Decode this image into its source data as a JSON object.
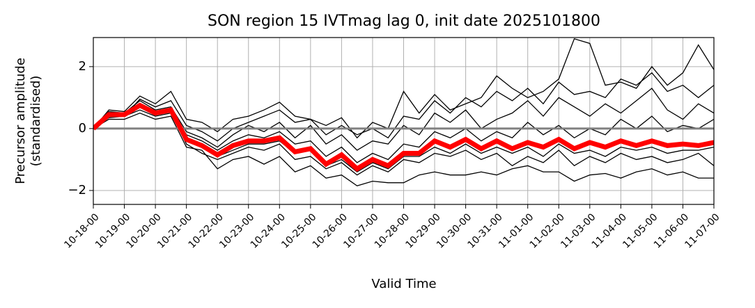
{
  "chart_data": {
    "type": "line",
    "title": "SON region 15 IVTmag lag 0, init date 2025101800",
    "xlabel": "Valid Time",
    "ylabel": [
      "Precursor amplitude",
      "(standardised)"
    ],
    "categories": [
      "10-18-00",
      null,
      "10-19-00",
      null,
      "10-20-00",
      null,
      "10-21-00",
      null,
      "10-22-00",
      null,
      "10-23-00",
      null,
      "10-24-00",
      null,
      "10-25-00",
      null,
      "10-26-00",
      null,
      "10-27-00",
      null,
      "10-28-00",
      null,
      "10-29-00",
      null,
      "10-30-00",
      null,
      "10-31-00",
      null,
      "11-01-00",
      null,
      "11-02-00",
      null,
      "11-03-00",
      null,
      "11-04-00",
      null,
      "11-05-00",
      null,
      "11-06-00",
      null,
      "11-07-00"
    ],
    "ylim": [
      -2.45,
      2.94
    ],
    "yticks": [
      {
        "value": -2,
        "label": "−2"
      },
      0,
      2
    ],
    "grid": true,
    "reference_line": {
      "value": 0,
      "color": "#808080"
    },
    "series": [
      {
        "color": "#000000",
        "width": 1.3,
        "values": [
          0,
          0.6,
          0.55,
          1.05,
          0.8,
          1.2,
          0.3,
          0.2,
          -0.1,
          0.3,
          0.4,
          0.6,
          0.85,
          0.4,
          0.3,
          0.1,
          0.35,
          -0.3,
          0.2,
          0.0,
          1.2,
          0.5,
          1.1,
          0.6,
          0.8,
          1.0,
          1.7,
          1.3,
          1.0,
          1.2,
          1.6,
          2.9,
          2.75,
          1.4,
          1.5,
          1.3,
          2.0,
          1.4,
          1.8,
          2.7,
          1.9
        ]
      },
      {
        "color": "#000000",
        "width": 1.3,
        "values": [
          0,
          0.3,
          0.3,
          0.5,
          0.3,
          0.4,
          -0.6,
          -0.7,
          -1.3,
          -1.0,
          -0.9,
          -1.15,
          -0.9,
          -1.4,
          -1.2,
          -1.6,
          -1.5,
          -1.85,
          -1.7,
          -1.75,
          -1.75,
          -1.5,
          -1.4,
          -1.5,
          -1.5,
          -1.4,
          -1.5,
          -1.3,
          -1.2,
          -1.4,
          -1.4,
          -1.7,
          -1.5,
          -1.45,
          -1.6,
          -1.4,
          -1.3,
          -1.5,
          -1.4,
          -1.6,
          -1.6
        ]
      },
      {
        "color": "#000000",
        "width": 1.3,
        "values": [
          0,
          0.5,
          0.5,
          0.9,
          0.6,
          0.7,
          -0.1,
          -0.3,
          -0.6,
          -0.2,
          0.1,
          -0.1,
          0.2,
          -0.3,
          0.1,
          -0.5,
          -0.2,
          -0.7,
          -0.4,
          -0.5,
          0.1,
          -0.2,
          0.5,
          0.2,
          0.6,
          0.0,
          0.3,
          0.5,
          0.9,
          0.4,
          1.0,
          0.7,
          0.4,
          0.8,
          0.5,
          0.9,
          1.3,
          0.6,
          0.3,
          0.8,
          0.5
        ]
      },
      {
        "color": "#000000",
        "width": 1.3,
        "values": [
          0,
          0.4,
          0.4,
          0.6,
          0.4,
          0.5,
          -0.5,
          -0.8,
          -1.0,
          -0.8,
          -0.6,
          -0.7,
          -0.5,
          -1.0,
          -0.9,
          -1.3,
          -1.1,
          -1.5,
          -1.2,
          -1.4,
          -1.0,
          -1.1,
          -0.8,
          -0.9,
          -0.7,
          -1.0,
          -0.8,
          -1.2,
          -0.9,
          -1.1,
          -0.7,
          -1.2,
          -0.9,
          -1.1,
          -0.8,
          -1.0,
          -0.9,
          -1.1,
          -1.0,
          -0.8,
          -1.2
        ]
      },
      {
        "color": "#000000",
        "width": 1.3,
        "values": [
          0,
          0.5,
          0.45,
          0.8,
          0.5,
          0.65,
          -0.2,
          -0.4,
          -0.7,
          -0.4,
          -0.2,
          -0.3,
          -0.1,
          -0.5,
          -0.4,
          -0.9,
          -0.6,
          -1.1,
          -0.8,
          -1.0,
          -0.5,
          -0.6,
          -0.1,
          -0.3,
          0.0,
          -0.4,
          -0.1,
          -0.3,
          0.2,
          -0.2,
          0.1,
          -0.3,
          0.0,
          -0.2,
          0.3,
          0.0,
          0.4,
          -0.1,
          0.1,
          0.0,
          0.3
        ]
      },
      {
        "color": "#000000",
        "width": 1.3,
        "values": [
          0,
          0.55,
          0.5,
          0.7,
          0.45,
          0.55,
          -0.4,
          -0.6,
          -0.9,
          -0.7,
          -0.5,
          -0.5,
          -0.4,
          -0.8,
          -0.7,
          -1.2,
          -1.0,
          -1.4,
          -1.1,
          -1.3,
          -0.9,
          -0.9,
          -0.6,
          -0.8,
          -0.5,
          -0.8,
          -0.6,
          -0.8,
          -0.6,
          -0.9,
          -0.5,
          -0.8,
          -0.7,
          -0.9,
          -0.6,
          -0.7,
          -0.6,
          -0.8,
          -0.7,
          -0.7,
          -0.6
        ]
      },
      {
        "color": "#000000",
        "width": 1.3,
        "values": [
          0,
          0.35,
          0.4,
          0.95,
          0.7,
          0.9,
          0.1,
          -0.1,
          -0.4,
          0.0,
          0.2,
          0.4,
          0.6,
          0.2,
          0.3,
          -0.2,
          0.1,
          -0.2,
          0.0,
          -0.3,
          0.4,
          0.3,
          0.9,
          0.5,
          1.0,
          0.7,
          1.2,
          0.9,
          1.3,
          0.8,
          1.5,
          1.1,
          1.2,
          1.0,
          1.6,
          1.4,
          1.8,
          1.2,
          1.4,
          1.0,
          1.4
        ]
      },
      {
        "color": "#ff0000",
        "width": 7,
        "values": [
          0,
          0.45,
          0.45,
          0.75,
          0.5,
          0.6,
          -0.35,
          -0.55,
          -0.85,
          -0.55,
          -0.4,
          -0.4,
          -0.3,
          -0.75,
          -0.65,
          -1.15,
          -0.85,
          -1.3,
          -1.0,
          -1.2,
          -0.8,
          -0.8,
          -0.4,
          -0.6,
          -0.35,
          -0.65,
          -0.4,
          -0.65,
          -0.45,
          -0.6,
          -0.35,
          -0.65,
          -0.45,
          -0.6,
          -0.4,
          -0.55,
          -0.4,
          -0.55,
          -0.5,
          -0.55,
          -0.45
        ]
      }
    ]
  }
}
